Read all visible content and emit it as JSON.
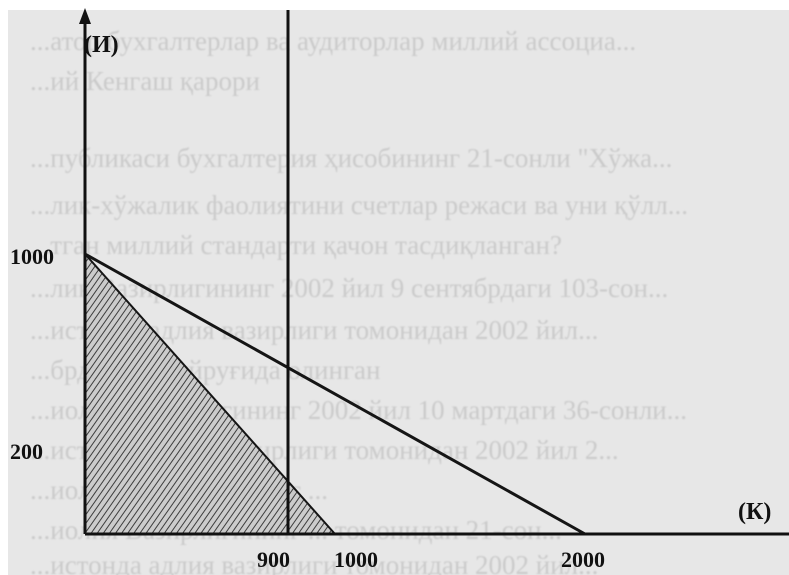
{
  "axes": {
    "y_label": "(И)",
    "x_label": "(К)"
  },
  "y_ticks": [
    {
      "value": 1000,
      "label": "1000"
    },
    {
      "value": 200,
      "label": "200"
    }
  ],
  "x_ticks": [
    {
      "value": 900,
      "label": "900"
    },
    {
      "value": 1000,
      "label": "1000"
    },
    {
      "value": 2000,
      "label": "2000"
    }
  ],
  "background_text": [
    "...атор бухгалтерлар ва аудиторлар миллий ассоциа...",
    "...ий Кенгаш қарори",
    "...публикаси бухгалтерия ҳисобининг 21-сонли \"Хўжа...",
    "...лик-хўжалик фаолиятини счетлар режаси ва уни қўлл...",
    "...тган миллий стандарти қачон тасдиқланган?",
    "...лик Вазирлигининг 2002 йил 9 сентябрдаги 103-сон...",
    "...истонда адлия вазирлиги томонидан 2002 йил...",
    "...брдаги ... буйруғида олинган",
    "...иолия Вазирлигининг 2002 йил 10 мартдаги 36-сонли...",
    "...истонда адлия вазирлиги томонидан 2002 йил 2...",
    "...иолия Вазирлигининг ...",
    "...иолия Вазирлигининг ... томонидан 21-сон...",
    "...истонда адлия вазирлиги томонидан 2002 йил..."
  ]
}
